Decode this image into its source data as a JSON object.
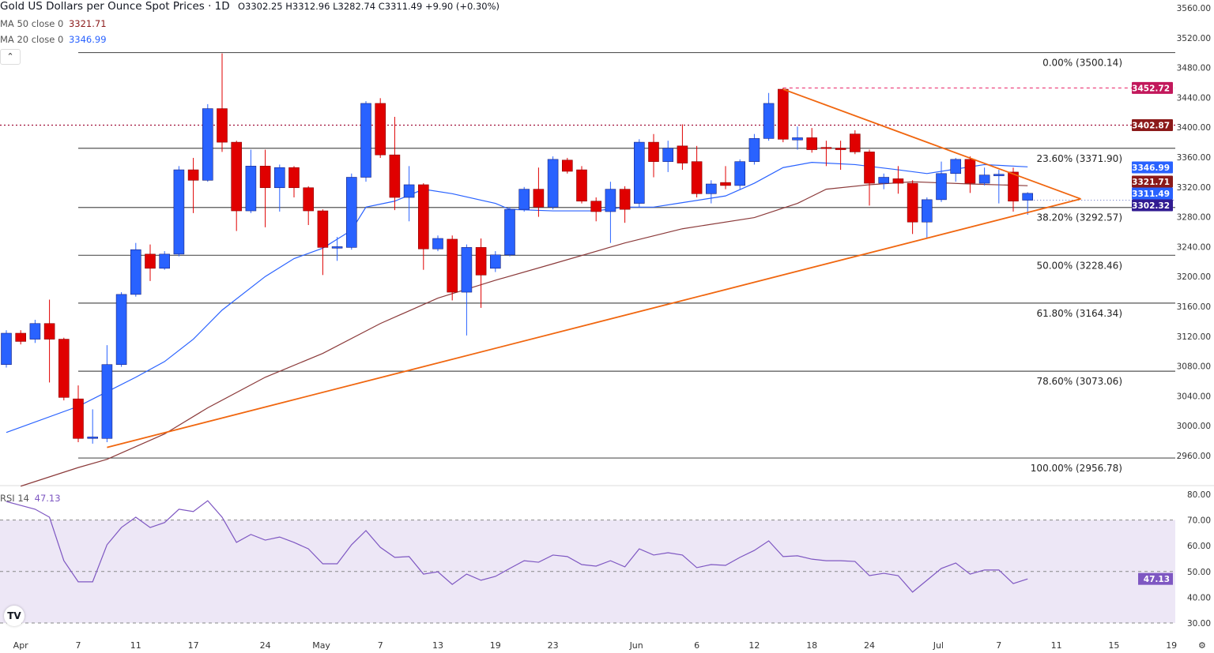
{
  "header": {
    "title": "Gold US Dollars per Ounce Spot Prices · 1D",
    "open": "O3302.25",
    "high": "H3312.96",
    "low": "L3282.74",
    "close": "C3311.49",
    "change": "+9.90 (+0.30%)"
  },
  "indicators": {
    "ma50": {
      "label": "MA 50 close 0",
      "value": "3321.71",
      "color": "#8b1a1a"
    },
    "ma20": {
      "label": "MA 20 close 0",
      "value": "3346.99",
      "color": "#2962ff"
    },
    "rsi": {
      "label": "RSI 14",
      "value": "47.13",
      "color": "#7e57c2"
    }
  },
  "collapse_icon": "chevron-up-icon",
  "logo": "TV",
  "colors": {
    "up": "#2962ff",
    "down": "#e00000",
    "trendline": "#f0660f",
    "fib": "#555555",
    "rsi_band": "#ede7f6"
  },
  "chart_data": [
    {
      "type": "candlestick",
      "title": "Gold US Dollars per Ounce Spot Prices · 1D",
      "ylim": [
        2940,
        3570
      ],
      "y_ticks": [
        "3560.00",
        "3520.00",
        "3480.00",
        "3440.00",
        "3400.00",
        "3360.00",
        "3320.00",
        "3280.00",
        "3240.00",
        "3200.00",
        "3160.00",
        "3120.00",
        "3080.00",
        "3040.00",
        "3000.00",
        "2960.00"
      ],
      "x_ticks": [
        "Apr",
        "7",
        "11",
        "17",
        "24",
        "May",
        "7",
        "13",
        "19",
        "23",
        "Jun",
        "6",
        "12",
        "18",
        "24",
        "Jul",
        "7",
        "11",
        "15",
        "19"
      ],
      "candles_ohlc": [
        [
          3082,
          3128,
          3078,
          3124
        ],
        [
          3124,
          3128,
          3109,
          3113
        ],
        [
          3116,
          3142,
          3111,
          3137
        ],
        [
          3137,
          3169,
          3058,
          3116
        ],
        [
          3116,
          3118,
          3034,
          3038
        ],
        [
          3036,
          3054,
          2978,
          2983
        ],
        [
          2983,
          3022,
          2976,
          2985
        ],
        [
          2983,
          3108,
          2978,
          3082
        ],
        [
          3082,
          3179,
          3079,
          3176
        ],
        [
          3176,
          3245,
          3173,
          3236
        ],
        [
          3230,
          3243,
          3194,
          3211
        ],
        [
          3211,
          3234,
          3209,
          3230
        ],
        [
          3230,
          3348,
          3227,
          3343
        ],
        [
          3343,
          3359,
          3285,
          3329
        ],
        [
          3329,
          3431,
          3327,
          3425
        ],
        [
          3425,
          3499,
          3367,
          3380
        ],
        [
          3380,
          3382,
          3261,
          3288
        ],
        [
          3288,
          3370,
          3285,
          3348
        ],
        [
          3348,
          3370,
          3266,
          3319
        ],
        [
          3319,
          3350,
          3287,
          3346
        ],
        [
          3346,
          3348,
          3306,
          3319
        ],
        [
          3319,
          3321,
          3269,
          3288
        ],
        [
          3288,
          3290,
          3202,
          3239
        ],
        [
          3238,
          3253,
          3221,
          3240
        ],
        [
          3239,
          3338,
          3236,
          3333
        ],
        [
          3333,
          3435,
          3327,
          3432
        ],
        [
          3432,
          3439,
          3359,
          3363
        ],
        [
          3363,
          3414,
          3289,
          3306
        ],
        [
          3306,
          3348,
          3274,
          3323
        ],
        [
          3323,
          3325,
          3209,
          3237
        ],
        [
          3237,
          3255,
          3234,
          3251
        ],
        [
          3250,
          3255,
          3168,
          3179
        ],
        [
          3179,
          3243,
          3121,
          3239
        ],
        [
          3239,
          3251,
          3158,
          3202
        ],
        [
          3211,
          3234,
          3206,
          3229
        ],
        [
          3229,
          3293,
          3227,
          3290
        ],
        [
          3290,
          3320,
          3287,
          3317
        ],
        [
          3317,
          3346,
          3280,
          3293
        ],
        [
          3293,
          3361,
          3290,
          3357
        ],
        [
          3356,
          3359,
          3338,
          3341
        ],
        [
          3343,
          3348,
          3298,
          3301
        ],
        [
          3301,
          3306,
          3274,
          3287
        ],
        [
          3287,
          3327,
          3245,
          3317
        ],
        [
          3317,
          3321,
          3272,
          3290
        ],
        [
          3298,
          3384,
          3293,
          3380
        ],
        [
          3380,
          3391,
          3333,
          3354
        ],
        [
          3354,
          3382,
          3340,
          3372
        ],
        [
          3375,
          3404,
          3343,
          3352
        ],
        [
          3354,
          3375,
          3306,
          3311
        ],
        [
          3311,
          3329,
          3298,
          3324
        ],
        [
          3326,
          3348,
          3317,
          3322
        ],
        [
          3322,
          3357,
          3317,
          3354
        ],
        [
          3354,
          3391,
          3350,
          3385
        ],
        [
          3385,
          3446,
          3382,
          3432
        ],
        [
          3451,
          3452.72,
          3380,
          3384
        ],
        [
          3383,
          3401,
          3370,
          3386
        ],
        [
          3386,
          3399,
          3366,
          3370
        ],
        [
          3373,
          3382,
          3348,
          3372
        ],
        [
          3372,
          3382,
          3343,
          3370
        ],
        [
          3391,
          3396,
          3364,
          3367
        ],
        [
          3367,
          3370,
          3295,
          3325
        ],
        [
          3325,
          3338,
          3317,
          3333
        ],
        [
          3331,
          3348,
          3311,
          3325
        ],
        [
          3325,
          3329,
          3257,
          3273
        ],
        [
          3273,
          3306,
          3251,
          3303
        ],
        [
          3303,
          3354,
          3300,
          3338
        ],
        [
          3338,
          3359,
          3327,
          3357
        ],
        [
          3357,
          3361,
          3312,
          3325
        ],
        [
          3325,
          3346,
          3322,
          3336
        ],
        [
          3335,
          3343,
          3298,
          3337
        ],
        [
          3340,
          3346,
          3287,
          3301
        ],
        [
          3302.25,
          3312.96,
          3282.74,
          3311.49
        ]
      ],
      "ma20_points": [
        [
          0,
          2991
        ],
        [
          5,
          3026
        ],
        [
          9,
          3065
        ],
        [
          11,
          3086
        ],
        [
          13,
          3116
        ],
        [
          15,
          3155
        ],
        [
          18,
          3200
        ],
        [
          20,
          3224
        ],
        [
          22,
          3238
        ],
        [
          24,
          3262
        ],
        [
          25,
          3293
        ],
        [
          27,
          3301
        ],
        [
          29,
          3317
        ],
        [
          31,
          3311
        ],
        [
          34,
          3298
        ],
        [
          35,
          3290
        ],
        [
          38,
          3288
        ],
        [
          41,
          3288
        ],
        [
          43,
          3293
        ],
        [
          45,
          3293
        ],
        [
          47,
          3299
        ],
        [
          50,
          3308
        ],
        [
          52,
          3325
        ],
        [
          54,
          3346
        ],
        [
          56,
          3353
        ],
        [
          59,
          3350
        ],
        [
          62,
          3343
        ],
        [
          64,
          3338
        ],
        [
          66,
          3344
        ],
        [
          68,
          3350
        ],
        [
          71,
          3346.99
        ]
      ],
      "ma50_points": [
        [
          1,
          2919
        ],
        [
          5,
          2944
        ],
        [
          7,
          2955
        ],
        [
          11,
          2989
        ],
        [
          14,
          3024
        ],
        [
          18,
          3065
        ],
        [
          22,
          3097
        ],
        [
          26,
          3137
        ],
        [
          30,
          3171
        ],
        [
          34,
          3195
        ],
        [
          38,
          3217
        ],
        [
          43,
          3245
        ],
        [
          47,
          3264
        ],
        [
          52,
          3279
        ],
        [
          55,
          3298
        ],
        [
          57,
          3317
        ],
        [
          60,
          3323
        ],
        [
          63,
          3327
        ],
        [
          67,
          3324
        ],
        [
          71,
          3321.71
        ]
      ],
      "fib_levels": [
        {
          "label": "0.00% (3500.14)",
          "value": 3500.14
        },
        {
          "label": "23.60% (3371.90)",
          "value": 3371.9
        },
        {
          "label": "38.20% (3292.57)",
          "value": 3292.57
        },
        {
          "label": "50.00% (3228.46)",
          "value": 3228.46
        },
        {
          "label": "61.80% (3164.34)",
          "value": 3164.34
        },
        {
          "label": "78.60% (3073.06)",
          "value": 3073.06
        },
        {
          "label": "100.00% (2956.78)",
          "value": 2956.78
        }
      ],
      "trendlines": {
        "lower": [
          [
            7,
            2971
          ],
          [
            74.7,
            3304
          ]
        ],
        "upper": [
          [
            54,
            3451
          ],
          [
            74.7,
            3304
          ]
        ]
      },
      "horizontal_lines": {
        "resistance_dotted": 3402.87,
        "high_dashed": 3452.72,
        "last_price_dotted": 3302.32
      },
      "price_labels": [
        {
          "value": "3452.72",
          "color": "#c2185b"
        },
        {
          "value": "3402.87",
          "color": "#8b1a1a"
        },
        {
          "value": "3346.99",
          "color": "#2962ff"
        },
        {
          "value": "3321.71",
          "color": "#8b1a1a"
        },
        {
          "value": "3311.49",
          "color": "#2962ff"
        },
        {
          "value": "3302.32",
          "color": "#311b92"
        }
      ]
    },
    {
      "type": "line",
      "title": "RSI 14",
      "ylim": [
        28,
        83
      ],
      "y_ticks": [
        "80.00",
        "70.00",
        "60.00",
        "50.00",
        "40.00",
        "30.00"
      ],
      "bands": [
        70,
        50,
        30
      ],
      "values": [
        77.2,
        75.7,
        74.2,
        71.1,
        54.2,
        46.0,
        46.0,
        60.4,
        67.1,
        71.1,
        67.1,
        69.0,
        74.2,
        73.3,
        77.5,
        71.1,
        61.3,
        64.4,
        62.2,
        63.4,
        61.3,
        58.8,
        53.0,
        53.0,
        60.4,
        65.9,
        59.4,
        55.5,
        55.8,
        49.0,
        49.9,
        45.0,
        49.0,
        46.6,
        48.1,
        51.2,
        54.2,
        53.6,
        56.4,
        55.8,
        52.7,
        52.1,
        54.2,
        51.8,
        58.8,
        56.4,
        57.3,
        56.4,
        51.5,
        52.7,
        52.4,
        55.5,
        58.2,
        61.9,
        55.8,
        56.1,
        54.8,
        54.2,
        54.2,
        53.9,
        48.4,
        49.3,
        48.4,
        42.0,
        46.6,
        51.2,
        53.3,
        49.0,
        50.6,
        50.6,
        45.3,
        47.13
      ],
      "last_label": "47.13"
    }
  ]
}
